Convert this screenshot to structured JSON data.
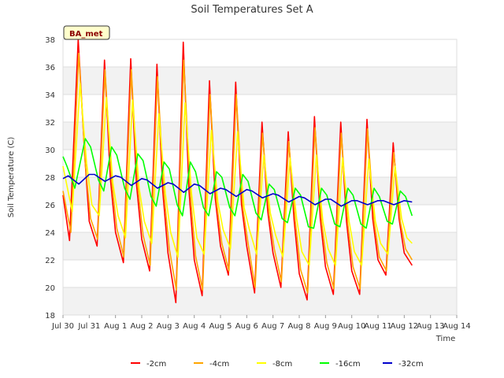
{
  "chart_data": {
    "type": "line",
    "title": "Soil Temperatures Set A",
    "xlabel": "Time",
    "ylabel": "Soil Temperature (C)",
    "badge": "BA_met",
    "xlim": [
      "Jul 30",
      "Aug 14"
    ],
    "ylim": [
      18,
      38
    ],
    "x_ticks": [
      "Jul 30",
      "Jul 31",
      "Aug 1",
      "Aug 2",
      "Aug 3",
      "Aug 4",
      "Aug 5",
      "Aug 6",
      "Aug 7",
      "Aug 8",
      "Aug 9",
      "Aug 10",
      "Aug 11",
      "Aug 12",
      "Aug 13",
      "Aug 14"
    ],
    "y_ticks": [
      18,
      20,
      22,
      24,
      26,
      28,
      30,
      32,
      34,
      36,
      38
    ],
    "grid": true,
    "legend_position": "bottom",
    "x_unit": "days since Jul 30",
    "series": [
      {
        "name": "-2cm",
        "color": "#ff0000",
        "x": [
          0.0,
          0.25,
          0.58,
          0.83,
          1.0,
          1.3,
          1.58,
          1.8,
          2.0,
          2.3,
          2.58,
          2.8,
          3.0,
          3.3,
          3.58,
          3.8,
          4.0,
          4.3,
          4.58,
          4.8,
          5.0,
          5.3,
          5.58,
          5.8,
          6.0,
          6.3,
          6.58,
          6.8,
          7.0,
          7.3,
          7.58,
          7.8,
          8.0,
          8.3,
          8.58,
          8.8,
          9.0,
          9.3,
          9.58,
          9.8,
          10.0,
          10.3,
          10.58,
          10.8,
          11.0,
          11.3,
          11.58,
          11.8,
          12.0,
          12.3,
          12.58,
          12.8,
          13.0,
          13.3
        ],
        "y": [
          26.7,
          23.4,
          38.0,
          29.5,
          24.8,
          23.0,
          36.5,
          28.0,
          24.0,
          21.8,
          36.6,
          27.5,
          23.5,
          21.2,
          36.2,
          27.0,
          22.5,
          18.9,
          37.8,
          27.0,
          22.0,
          19.4,
          35.0,
          26.5,
          23.0,
          20.9,
          34.9,
          26.0,
          23.0,
          19.6,
          32.0,
          25.5,
          22.5,
          20.0,
          31.3,
          25.0,
          21.0,
          19.1,
          32.4,
          25.0,
          21.5,
          19.5,
          32.0,
          24.8,
          21.2,
          19.5,
          32.2,
          25.0,
          22.0,
          20.9,
          30.5,
          25.0,
          22.5,
          21.6
        ]
      },
      {
        "name": "-4cm",
        "color": "#ffa500",
        "x": [
          0.0,
          0.3,
          0.6,
          0.85,
          1.05,
          1.32,
          1.6,
          1.85,
          2.05,
          2.32,
          2.6,
          2.85,
          3.05,
          3.32,
          3.6,
          3.85,
          4.05,
          4.32,
          4.6,
          4.85,
          5.05,
          5.32,
          5.6,
          5.85,
          6.05,
          6.32,
          6.6,
          6.85,
          7.05,
          7.32,
          7.6,
          7.85,
          8.05,
          8.32,
          8.6,
          8.85,
          9.05,
          9.32,
          9.6,
          9.85,
          10.05,
          10.32,
          10.6,
          10.85,
          11.05,
          11.32,
          11.6,
          11.85,
          12.05,
          12.32,
          12.6,
          12.85,
          13.05,
          13.3
        ],
        "y": [
          27.0,
          24.0,
          37.0,
          29.0,
          25.0,
          23.5,
          35.8,
          27.8,
          24.3,
          22.2,
          35.8,
          27.3,
          23.8,
          21.6,
          35.3,
          26.8,
          22.8,
          19.8,
          36.5,
          26.8,
          22.3,
          19.8,
          34.0,
          26.2,
          23.2,
          21.2,
          34.0,
          25.8,
          23.2,
          20.0,
          31.2,
          25.3,
          22.8,
          20.4,
          30.6,
          24.8,
          21.3,
          19.6,
          31.6,
          24.8,
          21.8,
          19.9,
          31.2,
          24.6,
          21.5,
          19.9,
          31.5,
          24.8,
          22.2,
          21.2,
          29.8,
          24.8,
          22.8,
          22.0
        ]
      },
      {
        "name": "-8cm",
        "color": "#ffff00",
        "x": [
          0.0,
          0.35,
          0.65,
          0.9,
          1.1,
          1.38,
          1.65,
          1.9,
          2.1,
          2.38,
          2.65,
          2.9,
          3.1,
          3.38,
          3.65,
          3.9,
          4.1,
          4.38,
          4.65,
          4.9,
          5.1,
          5.38,
          5.65,
          5.9,
          6.1,
          6.38,
          6.65,
          6.9,
          7.1,
          7.38,
          7.65,
          7.9,
          8.1,
          8.38,
          8.65,
          8.9,
          9.1,
          9.38,
          9.65,
          9.9,
          10.1,
          10.38,
          10.65,
          10.9,
          11.1,
          11.38,
          11.65,
          11.9,
          12.1,
          12.38,
          12.65,
          12.9,
          13.1,
          13.3
        ],
        "y": [
          28.8,
          25.5,
          34.8,
          29.0,
          26.0,
          25.2,
          33.8,
          27.6,
          25.2,
          23.6,
          33.6,
          27.2,
          24.8,
          23.2,
          32.6,
          26.8,
          24.0,
          22.2,
          33.4,
          26.8,
          23.6,
          22.4,
          31.4,
          26.2,
          24.2,
          22.8,
          31.3,
          25.8,
          24.2,
          22.4,
          29.6,
          25.4,
          23.8,
          22.2,
          29.4,
          25.0,
          22.6,
          21.6,
          29.6,
          24.8,
          22.8,
          21.6,
          29.4,
          24.8,
          22.6,
          21.6,
          29.3,
          24.8,
          23.2,
          22.4,
          28.8,
          25.0,
          23.6,
          23.2
        ]
      },
      {
        "name": "-16cm",
        "color": "#00ff00",
        "x": [
          0.0,
          0.15,
          0.45,
          0.85,
          1.05,
          1.35,
          1.55,
          1.85,
          2.05,
          2.35,
          2.55,
          2.85,
          3.05,
          3.35,
          3.55,
          3.85,
          4.05,
          4.35,
          4.55,
          4.85,
          5.05,
          5.35,
          5.55,
          5.85,
          6.05,
          6.35,
          6.55,
          6.85,
          7.05,
          7.35,
          7.55,
          7.85,
          8.05,
          8.35,
          8.55,
          8.85,
          9.05,
          9.35,
          9.55,
          9.85,
          10.05,
          10.35,
          10.55,
          10.85,
          11.05,
          11.35,
          11.55,
          11.85,
          12.05,
          12.35,
          12.55,
          12.85,
          13.05,
          13.3
        ],
        "y": [
          29.5,
          28.8,
          27.2,
          30.8,
          30.2,
          27.8,
          27.0,
          30.2,
          29.6,
          27.2,
          26.4,
          29.7,
          29.2,
          26.6,
          25.9,
          29.1,
          28.6,
          26.0,
          25.2,
          29.1,
          28.4,
          25.8,
          25.2,
          28.4,
          28.0,
          25.8,
          25.2,
          28.2,
          27.7,
          25.4,
          24.9,
          27.5,
          27.1,
          25.0,
          24.7,
          27.2,
          26.7,
          24.4,
          24.3,
          27.2,
          26.7,
          24.6,
          24.4,
          27.2,
          26.7,
          24.6,
          24.3,
          27.2,
          26.6,
          24.8,
          24.6,
          27.0,
          26.6,
          25.2
        ]
      },
      {
        "name": "-32cm",
        "color": "#0000cc",
        "x": [
          0.0,
          0.2,
          0.6,
          1.0,
          1.2,
          1.6,
          2.0,
          2.2,
          2.6,
          3.0,
          3.2,
          3.6,
          4.0,
          4.2,
          4.6,
          5.0,
          5.2,
          5.6,
          6.0,
          6.2,
          6.6,
          7.0,
          7.2,
          7.6,
          8.0,
          8.2,
          8.6,
          9.0,
          9.2,
          9.6,
          10.0,
          10.2,
          10.6,
          11.0,
          11.2,
          11.6,
          12.0,
          12.2,
          12.6,
          13.0,
          13.3
        ],
        "y": [
          27.9,
          28.1,
          27.5,
          28.2,
          28.2,
          27.7,
          28.1,
          28.0,
          27.4,
          27.9,
          27.8,
          27.2,
          27.6,
          27.5,
          26.9,
          27.5,
          27.4,
          26.8,
          27.2,
          27.1,
          26.6,
          27.1,
          27.0,
          26.5,
          26.8,
          26.7,
          26.2,
          26.6,
          26.5,
          26.0,
          26.4,
          26.4,
          25.9,
          26.3,
          26.3,
          26.0,
          26.3,
          26.3,
          26.0,
          26.3,
          26.2
        ]
      }
    ]
  }
}
